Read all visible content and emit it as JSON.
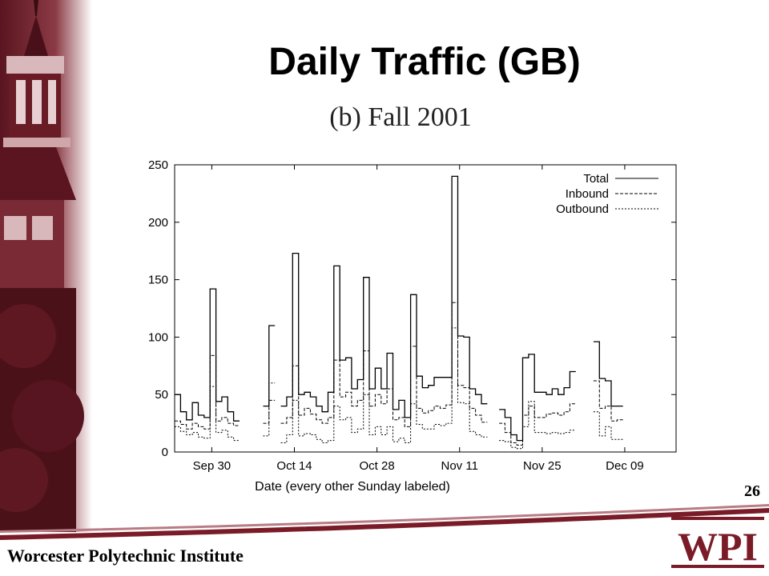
{
  "slide": {
    "title": "Daily Traffic (GB)",
    "subtitle": "(b) Fall 2001",
    "number": "26",
    "footer": "Worcester Polytechnic Institute",
    "logo_text": "WPI"
  },
  "colors": {
    "brand": "#7a1c27",
    "ink": "#000000"
  },
  "chart_data": {
    "type": "line",
    "title": "",
    "xlabel": "Date (every other Sunday labeled)",
    "ylabel": "",
    "ylim": [
      0,
      250
    ],
    "yticks": [
      0,
      50,
      100,
      150,
      200,
      250
    ],
    "xlim": [
      0,
      85
    ],
    "xticks": [
      {
        "label": "Sep 30",
        "day": 6.3
      },
      {
        "label": "Oct 14",
        "day": 20.3
      },
      {
        "label": "Oct 28",
        "day": 34.3
      },
      {
        "label": "Nov 11",
        "day": 48.3
      },
      {
        "label": "Nov 25",
        "day": 62.3
      },
      {
        "label": "Dec 09",
        "day": 76.3
      }
    ],
    "legend": {
      "position": "top-right"
    },
    "series": [
      {
        "name": "Total",
        "values": [
          50,
          35,
          28,
          43,
          32,
          30,
          142,
          44,
          48,
          35,
          27,
          null,
          null,
          null,
          null,
          40,
          110,
          null,
          40,
          48,
          173,
          50,
          52,
          48,
          40,
          35,
          52,
          162,
          80,
          82,
          55,
          63,
          152,
          55,
          73,
          55,
          86,
          37,
          45,
          30,
          137,
          66,
          56,
          58,
          65,
          65,
          65,
          240,
          101,
          100,
          55,
          50,
          42,
          null,
          null,
          37,
          30,
          15,
          10,
          82,
          85,
          52,
          52,
          50,
          55,
          50,
          56,
          70,
          null,
          null,
          null,
          96,
          64,
          62,
          40,
          40
        ],
        "style": "solid"
      },
      {
        "name": "Inbound",
        "values": [
          27,
          24,
          20,
          25,
          22,
          20,
          84,
          27,
          30,
          25,
          23,
          null,
          null,
          null,
          null,
          25,
          45,
          null,
          25,
          30,
          75,
          32,
          38,
          33,
          28,
          25,
          30,
          80,
          48,
          52,
          40,
          45,
          88,
          40,
          50,
          42,
          55,
          28,
          30,
          22,
          92,
          38,
          34,
          36,
          40,
          38,
          41,
          130,
          58,
          56,
          38,
          32,
          26,
          null,
          null,
          25,
          17,
          8,
          6,
          32,
          40,
          30,
          30,
          33,
          34,
          32,
          35,
          42,
          null,
          null,
          null,
          62,
          38,
          40,
          27,
          28
        ],
        "style": "dashed"
      },
      {
        "name": "Outbound",
        "values": [
          22,
          18,
          15,
          17,
          13,
          12,
          57,
          17,
          19,
          13,
          10,
          null,
          null,
          null,
          null,
          14,
          60,
          null,
          8,
          15,
          45,
          14,
          16,
          15,
          11,
          8,
          10,
          40,
          28,
          30,
          17,
          20,
          50,
          15,
          22,
          15,
          22,
          9,
          12,
          8,
          42,
          24,
          20,
          20,
          24,
          23,
          25,
          108,
          43,
          42,
          18,
          15,
          13,
          null,
          null,
          10,
          9,
          4,
          3,
          22,
          44,
          17,
          17,
          16,
          17,
          16,
          17,
          19,
          null,
          null,
          null,
          35,
          14,
          22,
          11,
          11
        ],
        "style": "dotted"
      }
    ]
  }
}
